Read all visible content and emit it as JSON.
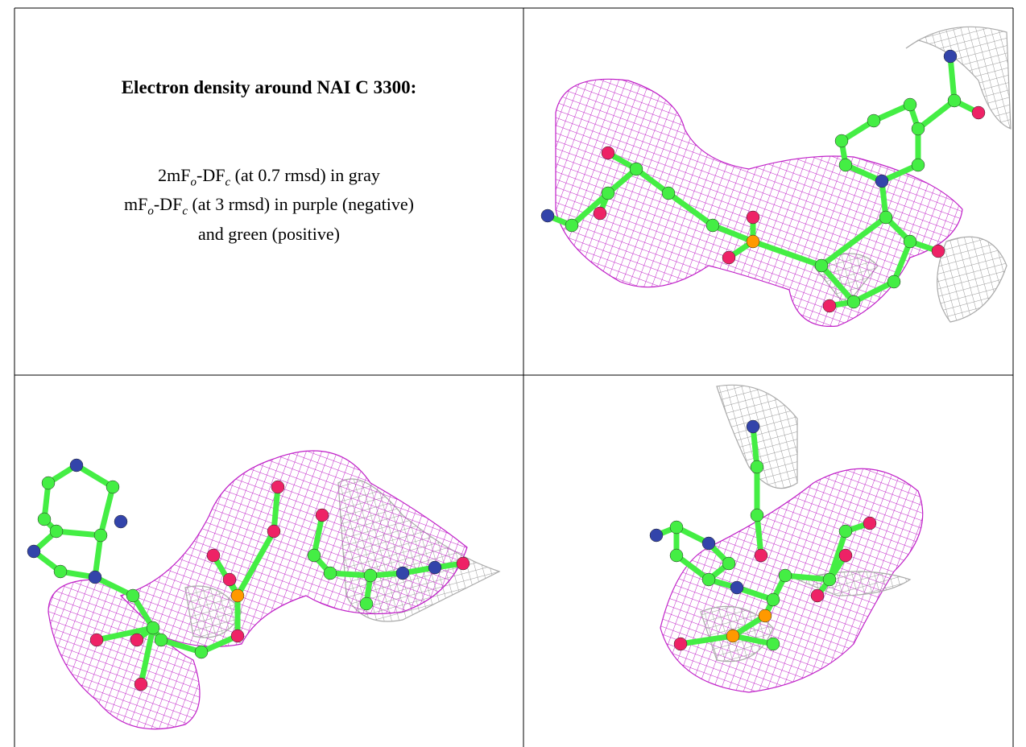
{
  "title": "Electron density around NAI C 3300:",
  "caption": [
    [
      {
        "text": "2mF"
      },
      {
        "sub": "o"
      },
      {
        "text": "-DF"
      },
      {
        "sub": "c"
      },
      {
        "text": " (at 0.7 rmsd) in gray"
      }
    ],
    [
      {
        "text": "mF"
      },
      {
        "sub": "o"
      },
      {
        "text": "-DF"
      },
      {
        "sub": "c"
      },
      {
        "text": " (at 3 rmsd) in purple (negative)"
      }
    ],
    [
      {
        "text": "and green (positive)"
      }
    ]
  ]
}
